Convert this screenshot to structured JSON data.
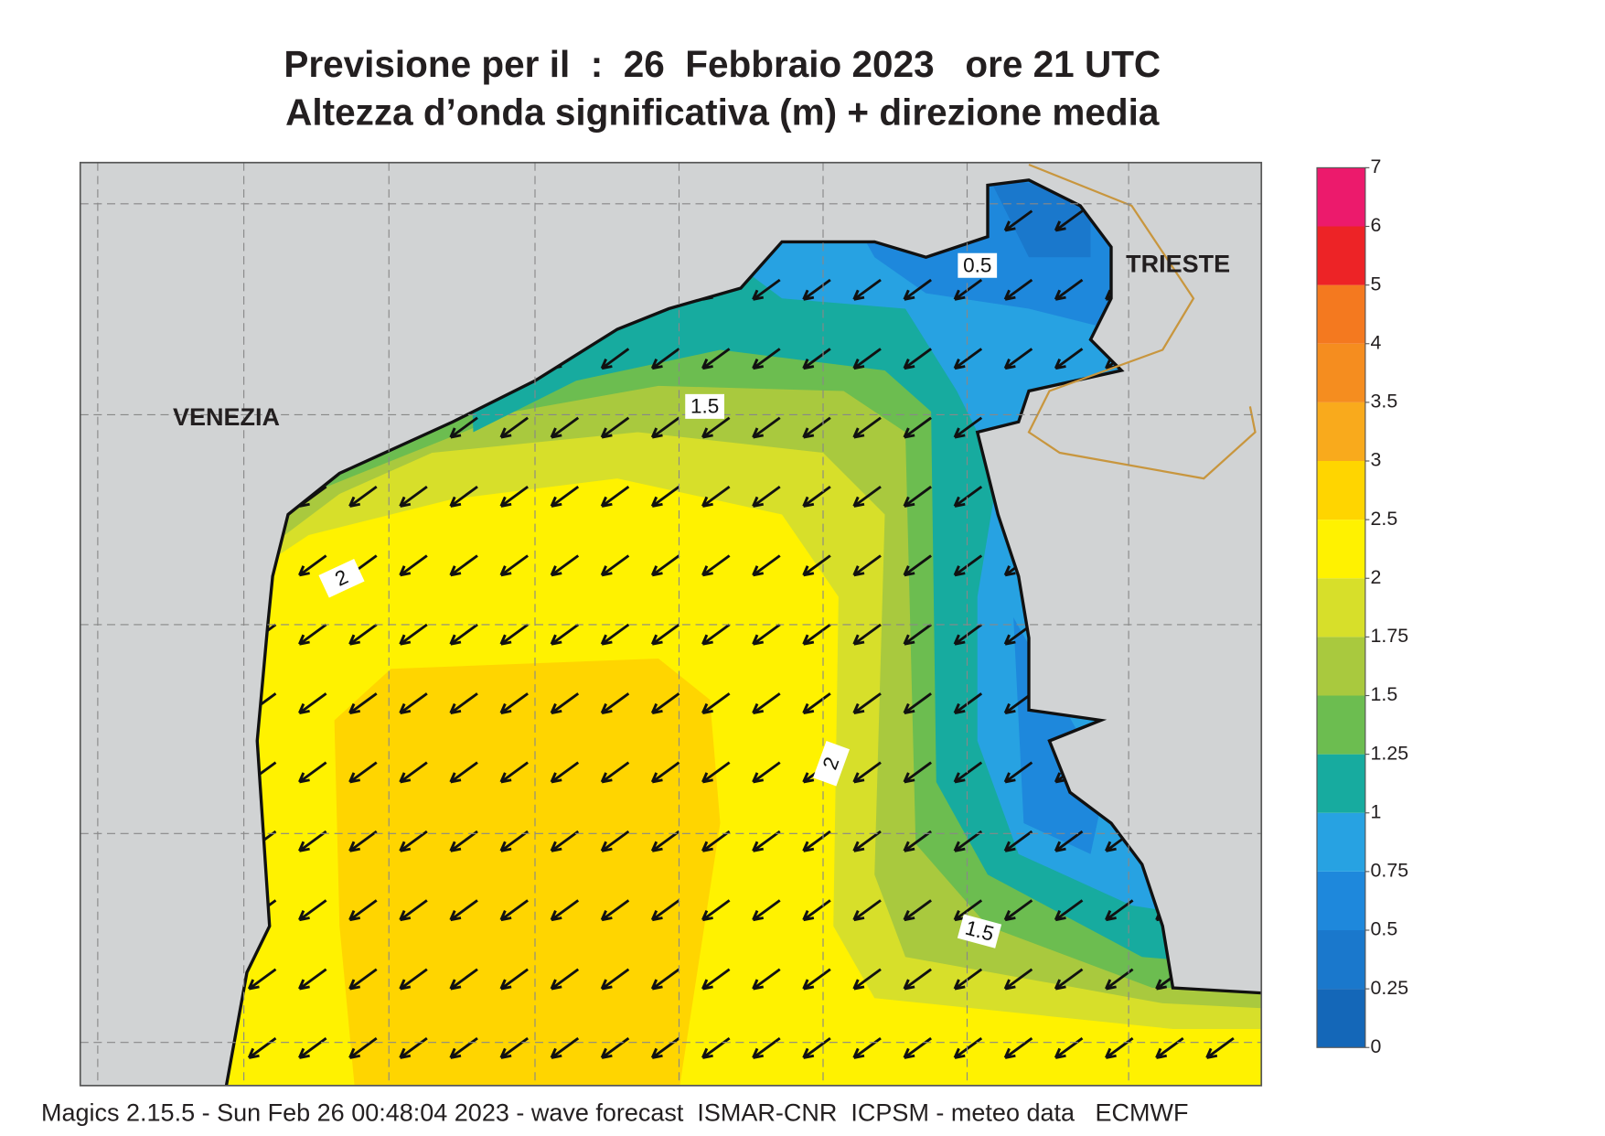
{
  "header": {
    "title": "Previsione per il  :  26  Febbraio 2023   ore 21 UTC",
    "subtitle": "Altezza d’onda significativa (m) + direzione media"
  },
  "map": {
    "places": [
      "VENEZIA",
      "TRIESTE"
    ],
    "contour_labels": [
      "0.5",
      "1.5",
      "2",
      "2",
      "1.5"
    ]
  },
  "colorbar": {
    "ticks": [
      0,
      0.25,
      0.5,
      0.75,
      1,
      1.25,
      1.5,
      1.75,
      2,
      2.5,
      3,
      3.5,
      4,
      5,
      6,
      7
    ],
    "colors": [
      "#1467b8",
      "#1a78cc",
      "#1e88dc",
      "#27a2e2",
      "#17ab9f",
      "#6cbd50",
      "#a9c93e",
      "#d7df2a",
      "#fff200",
      "#ffd500",
      "#f9aa1c",
      "#f58d1f",
      "#f4791f",
      "#ed2326",
      "#ec1a6c"
    ]
  },
  "footer": "Magics 2.15.5 - Sun Feb 26 00:48:04 2023 - wave forecast  ISMAR-CNR  ICPSM - meteo data   ECMWF"
}
